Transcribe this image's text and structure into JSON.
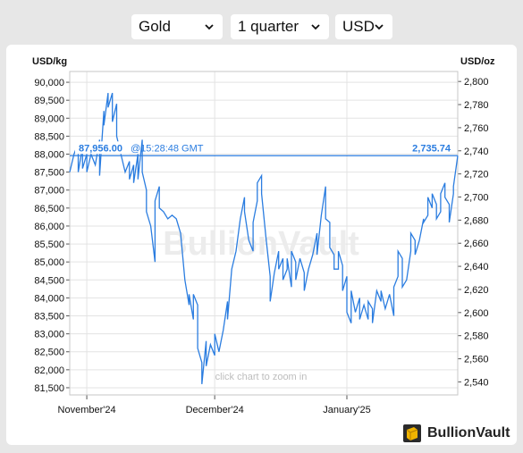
{
  "toolbar": {
    "metal": "Gold",
    "period": "1 quarter",
    "currency": "USD"
  },
  "colors": {
    "series": "#2b7de0",
    "crosshair": "#2b7de0",
    "grid": "#e3e3e3",
    "background": "#ffffff",
    "page": "#e7e7e7"
  },
  "chart_data": {
    "type": "line",
    "title": "",
    "watermark": "BullionVault",
    "hint": "click chart to zoom in",
    "left_axis": {
      "label": "USD/kg",
      "ticks": [
        "90,000",
        "89,500",
        "89,000",
        "88,500",
        "88,000",
        "87,500",
        "87,000",
        "86,500",
        "86,000",
        "85,500",
        "85,000",
        "84,500",
        "84,000",
        "83,500",
        "83,000",
        "82,500",
        "82,000",
        "81,500"
      ],
      "values": [
        90000,
        89500,
        89000,
        88500,
        88000,
        87500,
        87000,
        86500,
        86000,
        85500,
        85000,
        84500,
        84000,
        83500,
        83000,
        82500,
        82000,
        81500
      ],
      "range": [
        81300,
        90300
      ]
    },
    "right_axis": {
      "label": "USD/oz",
      "ticks": [
        "2,800",
        "2,780",
        "2,760",
        "2,740",
        "2,720",
        "2,700",
        "2,680",
        "2,660",
        "2,640",
        "2,620",
        "2,600",
        "2,580",
        "2,560",
        "2,540"
      ],
      "values": [
        2800,
        2780,
        2760,
        2740,
        2720,
        2700,
        2680,
        2660,
        2640,
        2620,
        2600,
        2580,
        2560,
        2540
      ]
    },
    "x_axis": {
      "tick_labels": [
        "November'24",
        "December'24",
        "January'25"
      ],
      "tick_dates": [
        "2024-11-01",
        "2024-12-01",
        "2025-01-01"
      ],
      "range": [
        "2024-10-28",
        "2025-01-27"
      ]
    },
    "crosshair": {
      "value_kg": "87,956.00",
      "time": "@15:28:48 GMT",
      "value_oz": "2,735.74",
      "y_value": 87956
    },
    "grid": true,
    "legend": "none",
    "series": [
      {
        "values": [
          [
            "2024-10-28",
            87500
          ],
          [
            "2024-10-29",
            88000
          ],
          [
            "2024-10-30",
            88300
          ],
          [
            "2024-10-30",
            87500
          ],
          [
            "2024-10-31",
            88200
          ],
          [
            "2024-10-31",
            87600
          ],
          [
            "2024-11-01",
            88000
          ],
          [
            "2024-11-01",
            87500
          ],
          [
            "2024-11-02",
            88000
          ],
          [
            "2024-11-03",
            87700
          ],
          [
            "2024-11-04",
            88400
          ],
          [
            "2024-11-04",
            87400
          ],
          [
            "2024-11-05",
            89200
          ],
          [
            "2024-11-05",
            88800
          ],
          [
            "2024-11-06",
            89700
          ],
          [
            "2024-11-06",
            89300
          ],
          [
            "2024-11-07",
            89700
          ],
          [
            "2024-11-07",
            88900
          ],
          [
            "2024-11-08",
            89400
          ],
          [
            "2024-11-08",
            88500
          ],
          [
            "2024-11-09",
            88000
          ],
          [
            "2024-11-10",
            87500
          ],
          [
            "2024-11-11",
            87800
          ],
          [
            "2024-11-11",
            87300
          ],
          [
            "2024-11-12",
            87700
          ],
          [
            "2024-11-12",
            87200
          ],
          [
            "2024-11-13",
            88000
          ],
          [
            "2024-11-13",
            87300
          ],
          [
            "2024-11-14",
            88400
          ],
          [
            "2024-11-14",
            87500
          ],
          [
            "2024-11-15",
            87000
          ],
          [
            "2024-11-15",
            86400
          ],
          [
            "2024-11-16",
            86000
          ],
          [
            "2024-11-17",
            85000
          ],
          [
            "2024-11-17",
            86700
          ],
          [
            "2024-11-18",
            87100
          ],
          [
            "2024-11-18",
            86500
          ],
          [
            "2024-11-19",
            86400
          ],
          [
            "2024-11-20",
            86200
          ],
          [
            "2024-11-21",
            86300
          ],
          [
            "2024-11-22",
            86200
          ],
          [
            "2024-11-23",
            85800
          ],
          [
            "2024-11-24",
            84500
          ],
          [
            "2024-11-25",
            83800
          ],
          [
            "2024-11-25",
            84100
          ],
          [
            "2024-11-26",
            83400
          ],
          [
            "2024-11-26",
            84100
          ],
          [
            "2024-11-27",
            83800
          ],
          [
            "2024-11-27",
            82600
          ],
          [
            "2024-11-28",
            82200
          ],
          [
            "2024-11-28",
            81600
          ],
          [
            "2024-11-29",
            82800
          ],
          [
            "2024-11-29",
            82100
          ],
          [
            "2024-11-30",
            82700
          ],
          [
            "2024-12-01",
            82400
          ],
          [
            "2024-12-01",
            83000
          ],
          [
            "2024-12-02",
            82500
          ],
          [
            "2024-12-03",
            83100
          ],
          [
            "2024-12-04",
            83900
          ],
          [
            "2024-12-04",
            83400
          ],
          [
            "2024-12-05",
            84800
          ],
          [
            "2024-12-06",
            85300
          ],
          [
            "2024-12-07",
            86200
          ],
          [
            "2024-12-08",
            86800
          ],
          [
            "2024-12-08",
            86400
          ],
          [
            "2024-12-09",
            85600
          ],
          [
            "2024-12-10",
            85300
          ],
          [
            "2024-12-10",
            86100
          ],
          [
            "2024-12-11",
            86700
          ],
          [
            "2024-12-11",
            87200
          ],
          [
            "2024-12-12",
            87400
          ],
          [
            "2024-12-12",
            86900
          ],
          [
            "2024-12-13",
            85700
          ],
          [
            "2024-12-14",
            84600
          ],
          [
            "2024-12-14",
            83900
          ],
          [
            "2024-12-15",
            84700
          ],
          [
            "2024-12-16",
            85300
          ],
          [
            "2024-12-16",
            84800
          ],
          [
            "2024-12-17",
            85100
          ],
          [
            "2024-12-17",
            84500
          ],
          [
            "2024-12-18",
            84800
          ],
          [
            "2024-12-18",
            85100
          ],
          [
            "2024-12-19",
            84300
          ],
          [
            "2024-12-19",
            85300
          ],
          [
            "2024-12-20",
            85000
          ],
          [
            "2024-12-20",
            84500
          ],
          [
            "2024-12-21",
            85100
          ],
          [
            "2024-12-22",
            84700
          ],
          [
            "2024-12-22",
            84200
          ],
          [
            "2024-12-23",
            84800
          ],
          [
            "2024-12-24",
            85200
          ],
          [
            "2024-12-25",
            85800
          ],
          [
            "2024-12-25",
            85200
          ],
          [
            "2024-12-26",
            86300
          ],
          [
            "2024-12-27",
            87100
          ],
          [
            "2024-12-27",
            86200
          ],
          [
            "2024-12-28",
            86100
          ],
          [
            "2024-12-28",
            85400
          ],
          [
            "2024-12-29",
            85200
          ],
          [
            "2024-12-29",
            84800
          ],
          [
            "2024-12-30",
            84800
          ],
          [
            "2024-12-30",
            85300
          ],
          [
            "2024-12-31",
            84900
          ],
          [
            "2024-12-31",
            84200
          ],
          [
            "2025-01-01",
            84600
          ],
          [
            "2025-01-01",
            83600
          ],
          [
            "2025-01-02",
            83300
          ],
          [
            "2025-01-02",
            84200
          ],
          [
            "2025-01-03",
            83600
          ],
          [
            "2025-01-04",
            84000
          ],
          [
            "2025-01-04",
            83400
          ],
          [
            "2025-01-05",
            83800
          ],
          [
            "2025-01-06",
            83400
          ],
          [
            "2025-01-06",
            83900
          ],
          [
            "2025-01-07",
            83700
          ],
          [
            "2025-01-07",
            83300
          ],
          [
            "2025-01-08",
            84200
          ],
          [
            "2025-01-09",
            83900
          ],
          [
            "2025-01-09",
            84200
          ],
          [
            "2025-01-10",
            83700
          ],
          [
            "2025-01-11",
            84100
          ],
          [
            "2025-01-12",
            83500
          ],
          [
            "2025-01-12",
            84300
          ],
          [
            "2025-01-13",
            84600
          ],
          [
            "2025-01-13",
            85300
          ],
          [
            "2025-01-14",
            85100
          ],
          [
            "2025-01-14",
            84300
          ],
          [
            "2025-01-15",
            84500
          ],
          [
            "2025-01-16",
            85300
          ],
          [
            "2025-01-16",
            85800
          ],
          [
            "2025-01-17",
            85600
          ],
          [
            "2025-01-17",
            85200
          ],
          [
            "2025-01-18",
            85600
          ],
          [
            "2025-01-19",
            86200
          ],
          [
            "2025-01-19",
            86100
          ],
          [
            "2025-01-20",
            86300
          ],
          [
            "2025-01-20",
            86800
          ],
          [
            "2025-01-21",
            86500
          ],
          [
            "2025-01-21",
            86900
          ],
          [
            "2025-01-22",
            86600
          ],
          [
            "2025-01-22",
            86200
          ],
          [
            "2025-01-23",
            86400
          ],
          [
            "2025-01-23",
            86900
          ],
          [
            "2025-01-24",
            87200
          ],
          [
            "2025-01-24",
            86800
          ],
          [
            "2025-01-25",
            86600
          ],
          [
            "2025-01-25",
            86100
          ],
          [
            "2025-01-26",
            86900
          ],
          [
            "2025-01-26",
            87100
          ],
          [
            "2025-01-27",
            87956
          ]
        ]
      }
    ]
  },
  "logo": {
    "text": "BullionVault",
    "icon": "gold-bar-icon"
  }
}
